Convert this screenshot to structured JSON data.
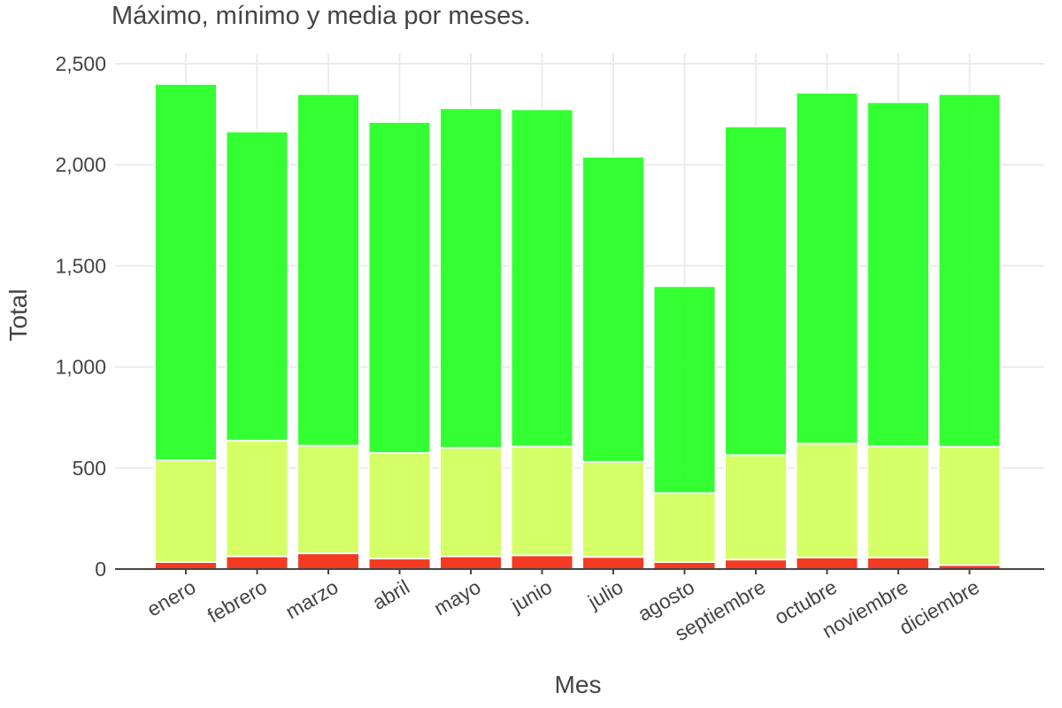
{
  "chart_data": {
    "type": "bar",
    "stacked": false,
    "overlay": true,
    "title": "Máximo, mínimo y media por meses.",
    "xlabel": "Mes",
    "ylabel": "Total",
    "ylim": [
      0,
      2500
    ],
    "yticks": [
      0,
      500,
      1000,
      1500,
      2000,
      2500
    ],
    "ytick_labels": [
      "0",
      "500",
      "1,000",
      "1,500",
      "2,000",
      "2,500"
    ],
    "grid": true,
    "legend": "none",
    "categories": [
      "enero",
      "febrero",
      "marzo",
      "abril",
      "mayo",
      "junio",
      "julio",
      "agosto",
      "septiembre",
      "octubre",
      "noviembre",
      "diciembre"
    ],
    "series": [
      {
        "values": [
          2400,
          2165,
          2350,
          2212,
          2280,
          2275,
          2040,
          1400,
          2190,
          2357,
          2310,
          2350
        ],
        "color": "#22ff22"
      },
      {
        "values": [
          538,
          635,
          610,
          574,
          600,
          606,
          530,
          375,
          563,
          620,
          607,
          605
        ],
        "color": "#d4ff66"
      },
      {
        "values": [
          35,
          63,
          78,
          52,
          63,
          68,
          60,
          35,
          47,
          57,
          57,
          20
        ],
        "color": "#f53a22"
      }
    ]
  }
}
